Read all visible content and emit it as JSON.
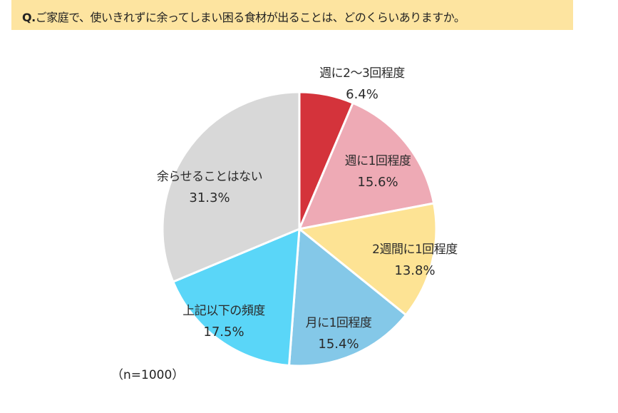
{
  "header": {
    "q_prefix": "Q.",
    "question": "ご家庭で、使いきれずに余ってしまい困る食材が出ることは、どのくらいありますか。"
  },
  "note": "（n=1000）",
  "colors": {
    "banner_bg": "#fde4a0",
    "weekly_2_3": "#d4333b",
    "weekly_1": "#eeaab5",
    "biweekly_1": "#fde394",
    "monthly_1": "#84c8e8",
    "less": "#5ad6f8",
    "never": "#d8d8d8"
  },
  "chart_data": {
    "type": "pie",
    "title": "Q.ご家庭で、使いきれずに余ってしまい困る食材が出ることは、どのくらいありますか。",
    "sample_size": "n=1000",
    "start_angle": "12 o'clock, clockwise",
    "categories": [
      "週に2～3回程度",
      "週に1回程度",
      "2週間に1回程度",
      "月に1回程度",
      "上記以下の頻度",
      "余らせることはない"
    ],
    "values": [
      6.4,
      15.6,
      13.8,
      15.4,
      17.5,
      31.3
    ],
    "labels": [
      "6.4%",
      "15.6%",
      "13.8%",
      "15.4%",
      "17.5%",
      "31.3%"
    ],
    "colors": [
      "#d4333b",
      "#eeaab5",
      "#fde394",
      "#84c8e8",
      "#5ad6f8",
      "#d8d8d8"
    ],
    "unit": "%"
  },
  "slices": [
    {
      "name": "週に2～3回程度",
      "pct": "6.4%"
    },
    {
      "name": "週に1回程度",
      "pct": "15.6%"
    },
    {
      "name": "2週間に1回程度",
      "pct": "13.8%"
    },
    {
      "name": "月に1回程度",
      "pct": "15.4%"
    },
    {
      "name": "上記以下の頻度",
      "pct": "17.5%"
    },
    {
      "name": "余らせることはない",
      "pct": "31.3%"
    }
  ]
}
